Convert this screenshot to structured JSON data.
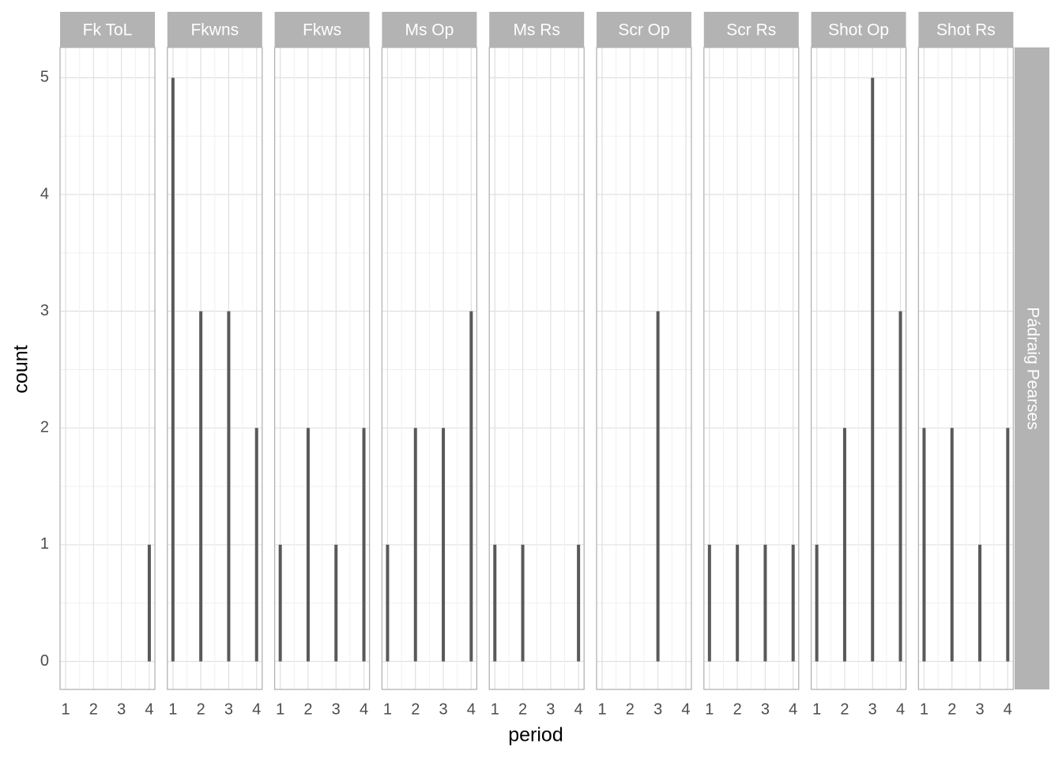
{
  "chart_data": {
    "type": "bar",
    "xlabel": "period",
    "ylabel": "count",
    "row_label": "Pádraig Pearses",
    "color": "#595959",
    "grid": true,
    "xlim": [
      0.8,
      4.2
    ],
    "xticks": [
      1,
      2,
      3,
      4
    ],
    "ylim": [
      -0.24,
      5.26
    ],
    "yticks": [
      0,
      1,
      2,
      3,
      4,
      5
    ],
    "facets": [
      {
        "title": "Fk ToL",
        "x": [
          4
        ],
        "values": [
          1
        ]
      },
      {
        "title": "Fkwns",
        "x": [
          1,
          2,
          3,
          4
        ],
        "values": [
          5,
          3,
          3,
          2
        ]
      },
      {
        "title": "Fkws",
        "x": [
          1,
          2,
          3,
          4
        ],
        "values": [
          1,
          2,
          1,
          2
        ]
      },
      {
        "title": "Ms Op",
        "x": [
          1,
          2,
          3,
          4
        ],
        "values": [
          1,
          2,
          2,
          3
        ]
      },
      {
        "title": "Ms Rs",
        "x": [
          1,
          2,
          4
        ],
        "values": [
          1,
          1,
          1
        ]
      },
      {
        "title": "Scr Op",
        "x": [
          3
        ],
        "values": [
          3
        ]
      },
      {
        "title": "Scr Rs",
        "x": [
          1,
          2,
          3,
          4
        ],
        "values": [
          1,
          1,
          1,
          1
        ]
      },
      {
        "title": "Shot Op",
        "x": [
          1,
          2,
          3,
          4
        ],
        "values": [
          1,
          2,
          5,
          3
        ]
      },
      {
        "title": "Shot Rs",
        "x": [
          1,
          2,
          3,
          4
        ],
        "values": [
          2,
          2,
          1,
          2
        ]
      }
    ]
  }
}
